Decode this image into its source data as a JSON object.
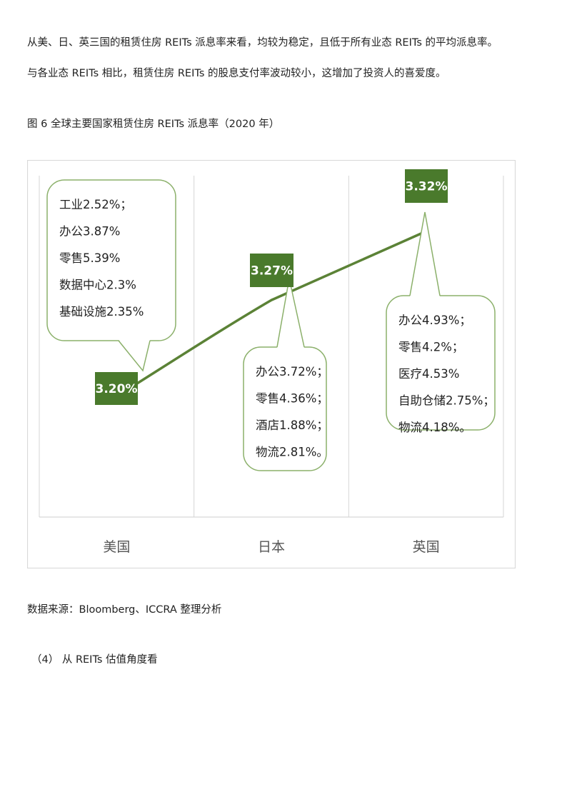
{
  "text": {
    "para1": "从美、日、英三国的租赁住房 REITs 派息率来看，均较为稳定，且低于所有业态 REITs 的平均派息率。",
    "para2": "与各业态 REITs 相比，租赁住房 REITs 的股息支付率波动较小，这增加了投资人的喜爱度。",
    "figure_caption": "图 6  全球主要国家租赁住房 REITs 派息率（2020 年）",
    "source": "数据来源：Bloomberg、ICCRA 整理分析",
    "section_heading": "（4）  从 REITs 估值角度看"
  },
  "chart_data": {
    "type": "line",
    "categories": [
      "美国",
      "日本",
      "英国"
    ],
    "values": [
      3.2,
      3.27,
      3.32
    ],
    "value_labels": [
      "3.20%",
      "3.27%",
      "3.32%"
    ],
    "annotations": [
      {
        "category": "美国",
        "lines": [
          "工业2.52%；",
          "办公3.87%",
          "零售5.39%",
          "数据中心2.3%",
          "基础设施2.35%"
        ]
      },
      {
        "category": "日本",
        "lines": [
          "办公3.72%；",
          "零售4.36%；",
          "酒店1.88%；",
          "物流2.81%。"
        ]
      },
      {
        "category": "英国",
        "lines": [
          "办公4.93%；",
          "零售4.2%；",
          "医疗4.53%",
          "自助仓储2.75%；",
          "物流4.18%。"
        ]
      }
    ],
    "grid": "vertical",
    "legend": "none",
    "colors": {
      "line": "#5b8236",
      "label_bg": "#4a7a2c",
      "bubble_border": "#8bb06a",
      "frame": "#d9d9d9"
    }
  }
}
